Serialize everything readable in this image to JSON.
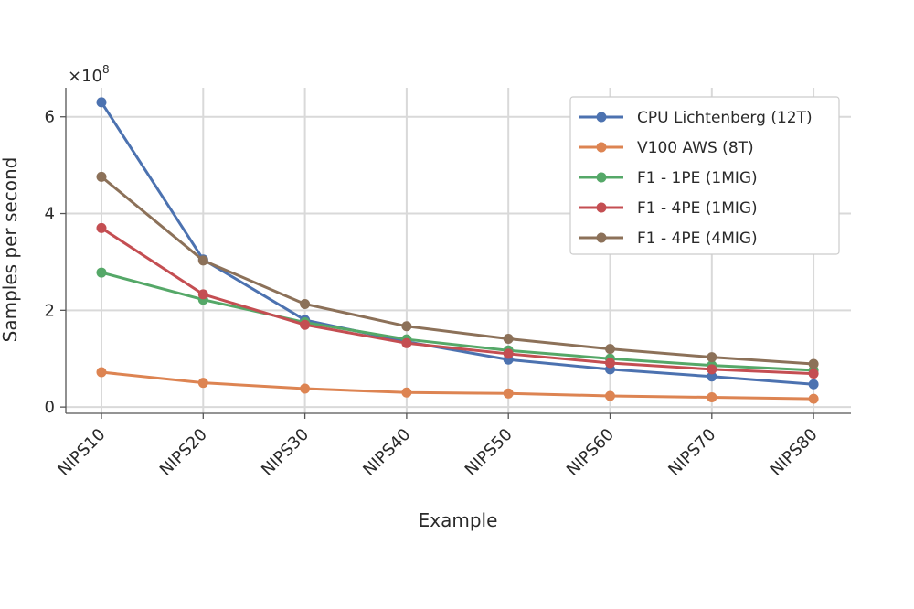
{
  "chart_data": {
    "type": "line",
    "title": "",
    "xlabel": "Example",
    "ylabel": "Samples per second",
    "y_multiplier_label": "×10",
    "y_multiplier_exponent": "8",
    "categories": [
      "NIPS10",
      "NIPS20",
      "NIPS30",
      "NIPS40",
      "NIPS50",
      "NIPS60",
      "NIPS70",
      "NIPS80"
    ],
    "yticks": [
      0,
      2,
      4,
      6
    ],
    "ylim": [
      -0.13,
      6.6
    ],
    "grid": true,
    "legend_position": "top-right",
    "series": [
      {
        "name": "CPU Lichtenberg (12T)",
        "color": "#4c72b0",
        "values": [
          6.3,
          3.05,
          1.8,
          1.35,
          0.98,
          0.78,
          0.63,
          0.47
        ]
      },
      {
        "name": "V100 AWS (8T)",
        "color": "#dd8452",
        "values": [
          0.72,
          0.5,
          0.38,
          0.3,
          0.28,
          0.23,
          0.2,
          0.17
        ]
      },
      {
        "name": "F1 - 1PE (1MIG)",
        "color": "#55a868",
        "values": [
          2.78,
          2.22,
          1.75,
          1.4,
          1.17,
          1.0,
          0.86,
          0.76
        ]
      },
      {
        "name": "F1 - 4PE (1MIG)",
        "color": "#c44e52",
        "values": [
          3.7,
          2.33,
          1.7,
          1.32,
          1.1,
          0.91,
          0.78,
          0.69
        ]
      },
      {
        "name": "F1 - 4PE (4MIG)",
        "color": "#8c7159",
        "values": [
          4.76,
          3.03,
          2.13,
          1.67,
          1.41,
          1.2,
          1.03,
          0.89
        ]
      }
    ]
  }
}
